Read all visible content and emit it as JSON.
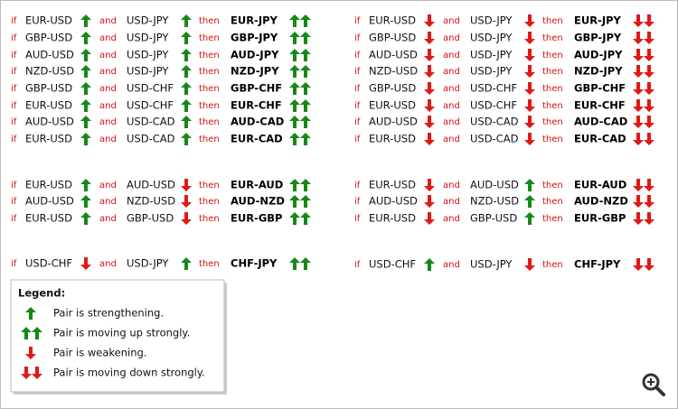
{
  "connectors": {
    "if": "if",
    "and": "and",
    "then": "then"
  },
  "columns": [
    {
      "groups": [
        {
          "rows": [
            {
              "pair1": "EUR-USD",
              "pair2": "USD-JPY",
              "result": "EUR-JPY"
            },
            {
              "pair1": "GBP-USD",
              "pair2": "USD-JPY",
              "result": "GBP-JPY"
            },
            {
              "pair1": "AUD-USD",
              "pair2": "USD-JPY",
              "result": "AUD-JPY"
            },
            {
              "pair1": "NZD-USD",
              "pair2": "USD-JPY",
              "result": "NZD-JPY"
            },
            {
              "pair1": "GBP-USD",
              "pair2": "USD-CHF",
              "result": "GBP-CHF"
            },
            {
              "pair1": "EUR-USD",
              "pair2": "USD-CHF",
              "result": "EUR-CHF"
            },
            {
              "pair1": "AUD-USD",
              "pair2": "USD-CAD",
              "result": "AUD-CAD"
            },
            {
              "pair1": "EUR-USD",
              "pair2": "USD-CAD",
              "result": "EUR-CAD"
            }
          ]
        },
        {
          "rows": [
            {
              "pair1": "EUR-USD",
              "pair2": "AUD-USD",
              "result": "EUR-AUD"
            },
            {
              "pair1": "AUD-USD",
              "pair2": "NZD-USD",
              "result": "AUD-NZD"
            },
            {
              "pair1": "EUR-USD",
              "pair2": "GBP-USD",
              "result": "EUR-GBP"
            }
          ]
        },
        {
          "rows": [
            {
              "pair1": "USD-CHF",
              "pair2": "USD-JPY",
              "result": "CHF-JPY"
            }
          ]
        }
      ]
    },
    {
      "groups": [
        {
          "rows": [
            {
              "pair1": "EUR-USD",
              "pair2": "USD-JPY",
              "result": "EUR-JPY"
            },
            {
              "pair1": "GBP-USD",
              "pair2": "USD-JPY",
              "result": "GBP-JPY"
            },
            {
              "pair1": "AUD-USD",
              "pair2": "USD-JPY",
              "result": "AUD-JPY"
            },
            {
              "pair1": "NZD-USD",
              "pair2": "USD-JPY",
              "result": "NZD-JPY"
            },
            {
              "pair1": "GBP-USD",
              "pair2": "USD-CHF",
              "result": "GBP-CHF"
            },
            {
              "pair1": "EUR-USD",
              "pair2": "USD-CHF",
              "result": "EUR-CHF"
            },
            {
              "pair1": "AUD-USD",
              "pair2": "USD-CAD",
              "result": "AUD-CAD"
            },
            {
              "pair1": "EUR-USD",
              "pair2": "USD-CAD",
              "result": "EUR-CAD"
            }
          ]
        },
        {
          "rows": [
            {
              "pair1": "EUR-USD",
              "pair2": "AUD-USD",
              "result": "EUR-AUD"
            },
            {
              "pair1": "AUD-USD",
              "pair2": "NZD-USD",
              "result": "AUD-NZD"
            },
            {
              "pair1": "EUR-USD",
              "pair2": "GBP-USD",
              "result": "EUR-GBP"
            }
          ]
        },
        {
          "rows": [
            {
              "pair1": "USD-CHF",
              "pair2": "USD-JPY",
              "result": "CHF-JPY"
            }
          ]
        }
      ]
    }
  ],
  "legend": {
    "title": "Legend:",
    "items": [
      "Pair is strengthening.",
      "Pair is moving up strongly.",
      "Pair is weakening.",
      "Pair is moving down strongly."
    ]
  }
}
